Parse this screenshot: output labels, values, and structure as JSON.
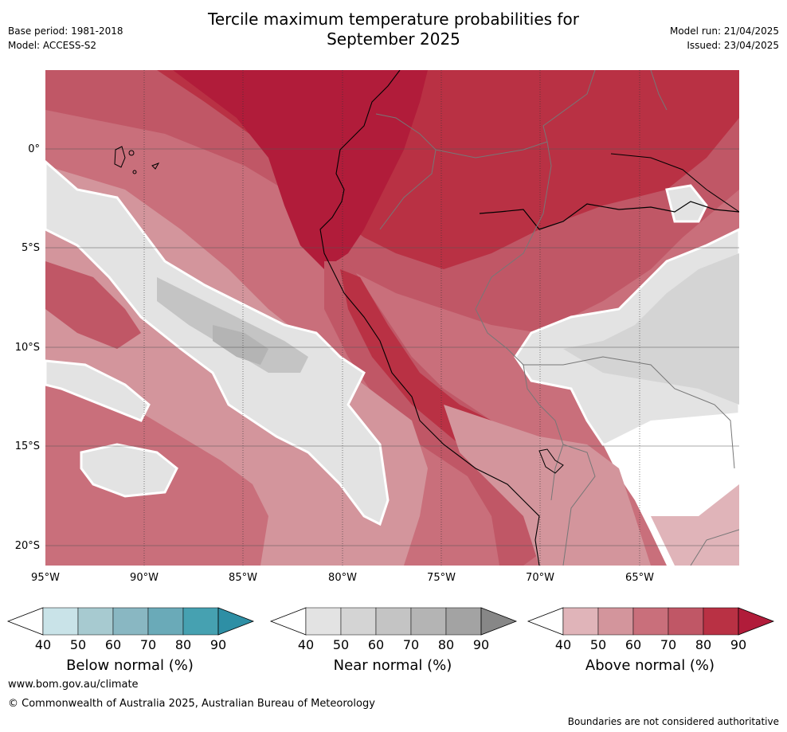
{
  "header": {
    "base_period": "Base period: 1981-2018",
    "model": "Model: ACCESS-S2",
    "title_line1": "Tercile maximum temperature probabilities for",
    "title_line2": "September 2025",
    "model_run": "Model run: 21/04/2025",
    "issued": "Issued: 23/04/2025"
  },
  "map": {
    "lat_labels": [
      "0°",
      "5°S",
      "10°S",
      "15°S",
      "20°S"
    ],
    "lon_labels": [
      "95°W",
      "90°W",
      "85°W",
      "80°W",
      "75°W",
      "70°W",
      "65°W"
    ]
  },
  "colorbars": [
    {
      "title": "Below normal (%)",
      "ticks": [
        "40",
        "50",
        "60",
        "70",
        "80",
        "90"
      ],
      "colors": [
        "#ffffff",
        "#c9e3e8",
        "#a7cad0",
        "#89b7c2",
        "#6aaab8",
        "#46a1b1",
        "#2e8fa5"
      ]
    },
    {
      "title": "Near normal (%)",
      "ticks": [
        "40",
        "50",
        "60",
        "70",
        "80",
        "90"
      ],
      "colors": [
        "#ffffff",
        "#e3e3e3",
        "#d4d4d4",
        "#c4c4c4",
        "#b4b4b4",
        "#a3a3a3",
        "#878787"
      ]
    },
    {
      "title": "Above normal (%)",
      "ticks": [
        "40",
        "50",
        "60",
        "70",
        "80",
        "90"
      ],
      "colors": [
        "#ffffff",
        "#e0b4b9",
        "#d3959c",
        "#c96f7b",
        "#c05766",
        "#b93144",
        "#b11c3a"
      ]
    }
  ],
  "footer": {
    "url": "www.bom.gov.au/climate",
    "copyright": "© Commonwealth of Australia 2025, Australian Bureau of Meteorology",
    "disclaimer": "Boundaries are not considered authoritative"
  }
}
